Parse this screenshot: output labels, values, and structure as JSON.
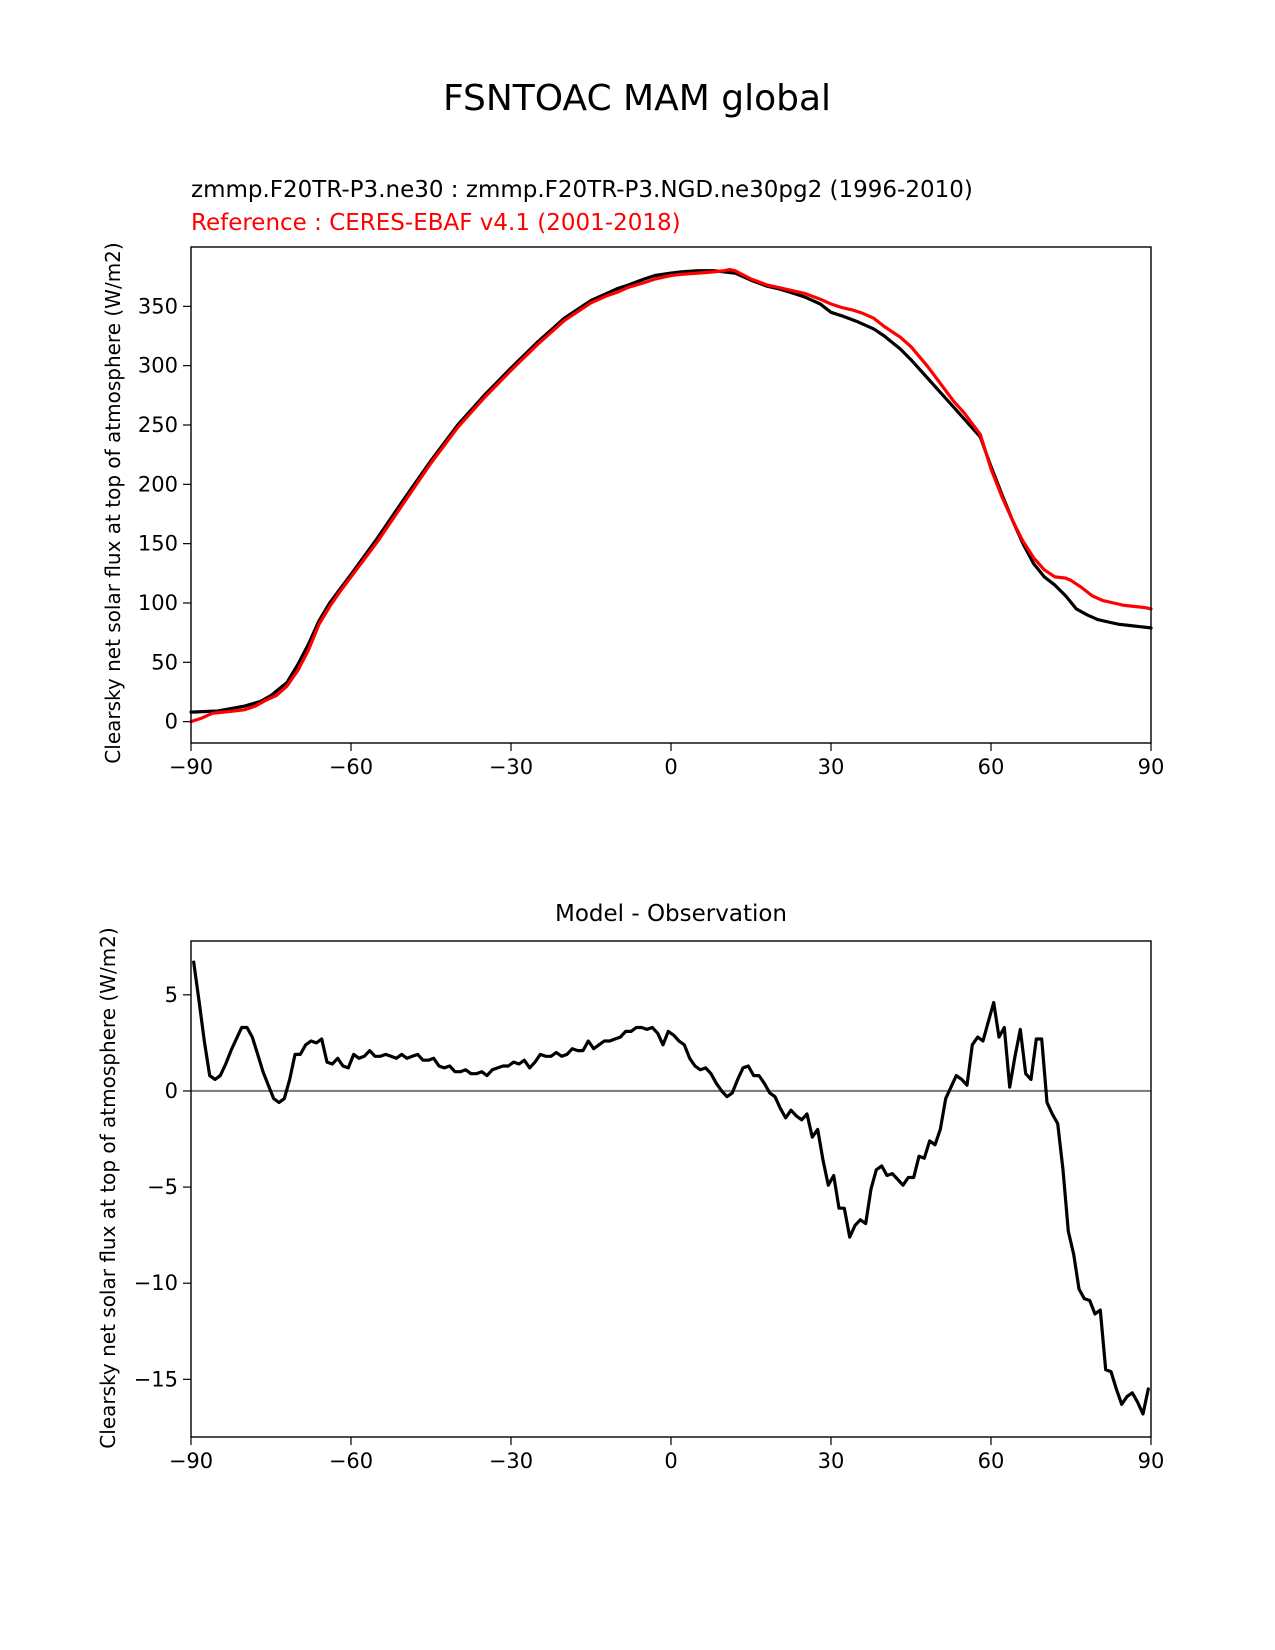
{
  "figure": {
    "title": "FSNTOAC MAM global"
  },
  "chart_data": [
    {
      "type": "line",
      "title_test": "zmmp.F20TR-P3.ne30 : zmmp.F20TR-P3.NGD.ne30pg2 (1996-2010)",
      "title_reference": "Reference : CERES-EBAF v4.1 (2001-2018)",
      "xlabel": "",
      "ylabel": "Clearsky net solar flux at top of atmosphere (W/m2)",
      "xlim": [
        -90,
        90
      ],
      "ylim": [
        -18,
        400
      ],
      "xticks": [
        -90,
        -60,
        -30,
        0,
        30,
        60,
        90
      ],
      "xtick_labels": [
        "−90",
        "−60",
        "−30",
        "0",
        "30",
        "60",
        "90"
      ],
      "yticks": [
        0,
        50,
        100,
        150,
        200,
        250,
        300,
        350
      ],
      "ytick_labels": [
        "0",
        "50",
        "100",
        "150",
        "200",
        "250",
        "300",
        "350"
      ],
      "colors": {
        "test": "#000000",
        "reference": "#ff0000"
      },
      "series": [
        {
          "name": "test",
          "color": "#000000",
          "x": [
            -90,
            -85,
            -80,
            -77,
            -75,
            -72,
            -70,
            -68,
            -66,
            -64,
            -62,
            -60,
            -55,
            -50,
            -45,
            -40,
            -35,
            -30,
            -25,
            -20,
            -15,
            -12,
            -10,
            -8,
            -5,
            -3,
            0,
            2,
            5,
            8,
            10,
            12,
            15,
            18,
            20,
            23,
            25,
            28,
            30,
            32,
            35,
            38,
            40,
            43,
            45,
            48,
            50,
            53,
            55,
            58,
            60,
            62,
            64,
            66,
            68,
            70,
            72,
            74,
            76,
            78,
            80,
            82,
            84,
            86,
            88,
            90
          ],
          "y": [
            8,
            9,
            13,
            17,
            22,
            33,
            48,
            65,
            85,
            100,
            112,
            124,
            155,
            188,
            220,
            250,
            275,
            298,
            320,
            340,
            355,
            361,
            365,
            368,
            373,
            376,
            378,
            379,
            380,
            380,
            379,
            378,
            372,
            367,
            365,
            361,
            358,
            352,
            345,
            342,
            337,
            331,
            325,
            314,
            305,
            290,
            280,
            265,
            255,
            240,
            215,
            192,
            170,
            150,
            133,
            122,
            115,
            106,
            95,
            90,
            86,
            84,
            82,
            81,
            80,
            79
          ]
        },
        {
          "name": "reference",
          "color": "#ff0000",
          "x": [
            -90,
            -88,
            -86,
            -84,
            -82,
            -80,
            -78,
            -76,
            -74,
            -72,
            -70,
            -68,
            -66,
            -64,
            -62,
            -60,
            -55,
            -50,
            -45,
            -40,
            -35,
            -30,
            -25,
            -20,
            -15,
            -12,
            -10,
            -8,
            -5,
            -3,
            0,
            2,
            5,
            8,
            10,
            11,
            12,
            15,
            18,
            20,
            23,
            25,
            28,
            30,
            32,
            34,
            36,
            38,
            40,
            43,
            45,
            48,
            50,
            53,
            55,
            58,
            60,
            62,
            64,
            66,
            68,
            70,
            72,
            74,
            75,
            77,
            79,
            81,
            83,
            85,
            87,
            89,
            90
          ],
          "y": [
            0,
            3,
            7,
            8,
            9,
            10,
            13,
            18,
            22,
            30,
            43,
            60,
            82,
            97,
            110,
            122,
            152,
            185,
            218,
            248,
            273,
            296,
            318,
            338,
            353,
            359,
            362,
            366,
            370,
            373,
            376,
            377,
            378,
            379,
            380,
            381,
            380,
            373,
            368,
            366,
            363,
            361,
            356,
            352,
            349,
            347,
            344,
            340,
            333,
            324,
            316,
            300,
            288,
            270,
            260,
            242,
            213,
            190,
            170,
            152,
            138,
            128,
            122,
            121,
            119,
            113,
            106,
            102,
            100,
            98,
            97,
            96,
            95
          ]
        }
      ]
    },
    {
      "type": "line",
      "title": "Model - Observation",
      "xlabel": "",
      "ylabel": "Clearsky net solar flux at top of atmosphere (W/m2)",
      "xlim": [
        -90,
        90
      ],
      "ylim": [
        -18,
        7.8
      ],
      "xticks": [
        -90,
        -60,
        -30,
        0,
        30,
        60,
        90
      ],
      "xtick_labels": [
        "−90",
        "−60",
        "−30",
        "0",
        "30",
        "60",
        "90"
      ],
      "yticks": [
        -15,
        -10,
        -5,
        0,
        5
      ],
      "ytick_labels": [
        "−15",
        "−10",
        "−5",
        "0",
        "5"
      ],
      "zero_line_color": "#808080",
      "series": [
        {
          "name": "difference",
          "color": "#000000",
          "x": [
            -89.5,
            -88.5,
            -87.5,
            -86.5,
            -85.5,
            -84.5,
            -83.5,
            -82.5,
            -81.5,
            -80.5,
            -79.5,
            -78.5,
            -77.5,
            -76.5,
            -75.5,
            -74.5,
            -73.5,
            -72.5,
            -71.5,
            -70.5,
            -69.5,
            -68.5,
            -67.5,
            -66.5,
            -65.5,
            -64.5,
            -63.5,
            -62.5,
            -61.5,
            -60.5,
            -59.5,
            -58.5,
            -57.5,
            -56.5,
            -55.5,
            -54.5,
            -53.5,
            -52.5,
            -51.5,
            -50.5,
            -49.5,
            -48.5,
            -47.5,
            -46.5,
            -45.5,
            -44.5,
            -43.5,
            -42.5,
            -41.5,
            -40.5,
            -39.5,
            -38.5,
            -37.5,
            -36.5,
            -35.5,
            -34.5,
            -33.5,
            -32.5,
            -31.5,
            -30.5,
            -29.5,
            -28.5,
            -27.5,
            -26.5,
            -25.5,
            -24.5,
            -23.5,
            -22.5,
            -21.5,
            -20.5,
            -19.5,
            -18.5,
            -17.5,
            -16.5,
            -15.5,
            -14.5,
            -13.5,
            -12.5,
            -11.5,
            -10.5,
            -9.5,
            -8.5,
            -7.5,
            -6.5,
            -5.5,
            -4.5,
            -3.5,
            -2.5,
            -1.5,
            -0.5,
            0.5,
            1.5,
            2.5,
            3.5,
            4.5,
            5.5,
            6.5,
            7.5,
            8.5,
            9.5,
            10.5,
            11.5,
            12.5,
            13.5,
            14.5,
            15.5,
            16.5,
            17.5,
            18.5,
            19.5,
            20.5,
            21.5,
            22.5,
            23.5,
            24.5,
            25.5,
            26.5,
            27.5,
            28.5,
            29.5,
            30.5,
            31.5,
            32.5,
            33.5,
            34.5,
            35.5,
            36.5,
            37.5,
            38.5,
            39.5,
            40.5,
            41.5,
            42.5,
            43.5,
            44.5,
            45.5,
            46.5,
            47.5,
            48.5,
            49.5,
            50.5,
            51.5,
            52.5,
            53.5,
            54.5,
            55.5,
            56.5,
            57.5,
            58.5,
            59.5,
            60.5,
            61.5,
            62.5,
            63.5,
            64.5,
            65.5,
            66.5,
            67.5,
            68.5,
            69.5,
            70.5,
            71.5,
            72.5,
            73.5,
            74.5,
            75.5,
            76.5,
            77.5,
            78.5,
            79.5,
            80.5,
            81.5,
            82.5,
            83.5,
            84.5,
            85.5,
            86.5,
            87.5,
            88.5,
            89.5
          ],
          "y": [
            6.7,
            4.7,
            2.6,
            0.8,
            0.6,
            0.8,
            1.4,
            2.1,
            2.7,
            3.3,
            3.3,
            2.8,
            1.9,
            1.0,
            0.3,
            -0.4,
            -0.6,
            -0.4,
            0.6,
            1.9,
            1.9,
            2.4,
            2.6,
            2.5,
            2.7,
            1.5,
            1.4,
            1.7,
            1.3,
            1.2,
            1.9,
            1.7,
            1.8,
            2.1,
            1.8,
            1.8,
            1.9,
            1.8,
            1.7,
            1.9,
            1.7,
            1.8,
            1.9,
            1.6,
            1.6,
            1.7,
            1.3,
            1.2,
            1.3,
            1.0,
            1.0,
            1.1,
            0.9,
            0.9,
            1.0,
            0.8,
            1.1,
            1.2,
            1.3,
            1.3,
            1.5,
            1.4,
            1.6,
            1.2,
            1.5,
            1.9,
            1.8,
            1.8,
            2.0,
            1.8,
            1.9,
            2.2,
            2.1,
            2.1,
            2.6,
            2.2,
            2.4,
            2.6,
            2.6,
            2.7,
            2.8,
            3.1,
            3.1,
            3.3,
            3.3,
            3.2,
            3.3,
            3.0,
            2.4,
            3.1,
            2.9,
            2.6,
            2.4,
            1.7,
            1.3,
            1.1,
            1.2,
            0.9,
            0.4,
            0.0,
            -0.3,
            -0.1,
            0.6,
            1.2,
            1.3,
            0.8,
            0.8,
            0.4,
            -0.1,
            -0.3,
            -0.9,
            -1.4,
            -1.0,
            -1.3,
            -1.5,
            -1.2,
            -2.4,
            -2.0,
            -3.6,
            -4.9,
            -4.4,
            -6.1,
            -6.1,
            -7.6,
            -7.0,
            -6.7,
            -6.9,
            -5.1,
            -4.1,
            -3.9,
            -4.4,
            -4.3,
            -4.6,
            -4.9,
            -4.5,
            -4.5,
            -3.4,
            -3.5,
            -2.6,
            -2.8,
            -2.0,
            -0.4,
            0.2,
            0.8,
            0.6,
            0.3,
            2.4,
            2.8,
            2.6,
            3.6,
            4.6,
            2.8,
            3.3,
            0.2,
            1.8,
            3.2,
            0.9,
            0.6,
            2.7,
            2.7,
            -0.6,
            -1.2,
            -1.7,
            -4.1,
            -7.3,
            -8.5,
            -10.3,
            -10.8,
            -10.9,
            -11.6,
            -11.4,
            -14.5,
            -14.6,
            -15.5,
            -16.3,
            -15.9,
            -15.7,
            -16.2,
            -16.8,
            -15.5
          ]
        }
      ]
    }
  ]
}
